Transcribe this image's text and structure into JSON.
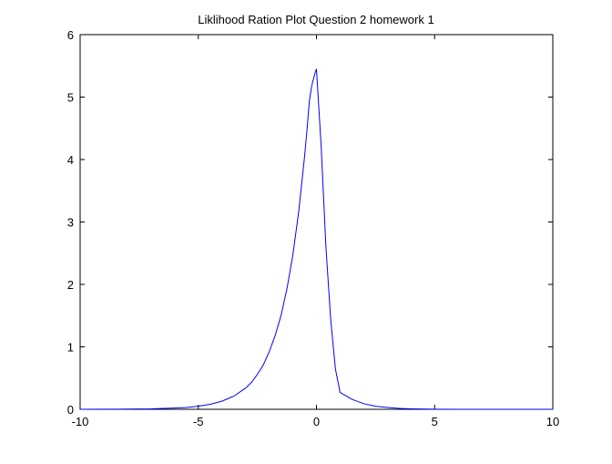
{
  "chart_data": {
    "type": "line",
    "title": "Liklihood Ration Plot Question 2 homework 1",
    "xlabel": "",
    "ylabel": "",
    "xlim": [
      -10,
      10
    ],
    "ylim": [
      0,
      6
    ],
    "x_ticks": [
      -10,
      -5,
      0,
      5,
      10
    ],
    "y_ticks": [
      0,
      1,
      2,
      3,
      4,
      5,
      6
    ],
    "x_tick_labels": [
      "-10",
      "-5",
      "0",
      "5",
      "10"
    ],
    "y_tick_labels": [
      "0",
      "1",
      "2",
      "3",
      "4",
      "5",
      "6"
    ],
    "grid": false,
    "legend": "none",
    "line_color": "#0000ff",
    "series": [
      {
        "x": [
          -10,
          -9,
          -8,
          -7,
          -6,
          -5.5,
          -5,
          -4.5,
          -4,
          -3.5,
          -3,
          -2.75,
          -2.5,
          -2.25,
          -2,
          -1.75,
          -1.5,
          -1.25,
          -1,
          -0.75,
          -0.5,
          -0.4,
          -0.3,
          -0.2,
          -0.1,
          -0.05,
          0,
          0.2,
          0.4,
          0.6,
          0.8,
          1,
          1.5,
          2,
          2.5,
          3,
          3.5,
          4,
          5,
          6,
          8,
          10
        ],
        "y": [
          0,
          0.001,
          0.003,
          0.007,
          0.02,
          0.03,
          0.05,
          0.08,
          0.13,
          0.21,
          0.34,
          0.43,
          0.56,
          0.71,
          0.92,
          1.18,
          1.5,
          1.93,
          2.47,
          3.17,
          4.06,
          4.48,
          4.94,
          5.18,
          5.33,
          5.4,
          5.45,
          4.2,
          2.6,
          1.45,
          0.65,
          0.27,
          0.16,
          0.09,
          0.05,
          0.03,
          0.015,
          0.008,
          0.002,
          0.0005,
          0,
          0
        ]
      }
    ]
  }
}
